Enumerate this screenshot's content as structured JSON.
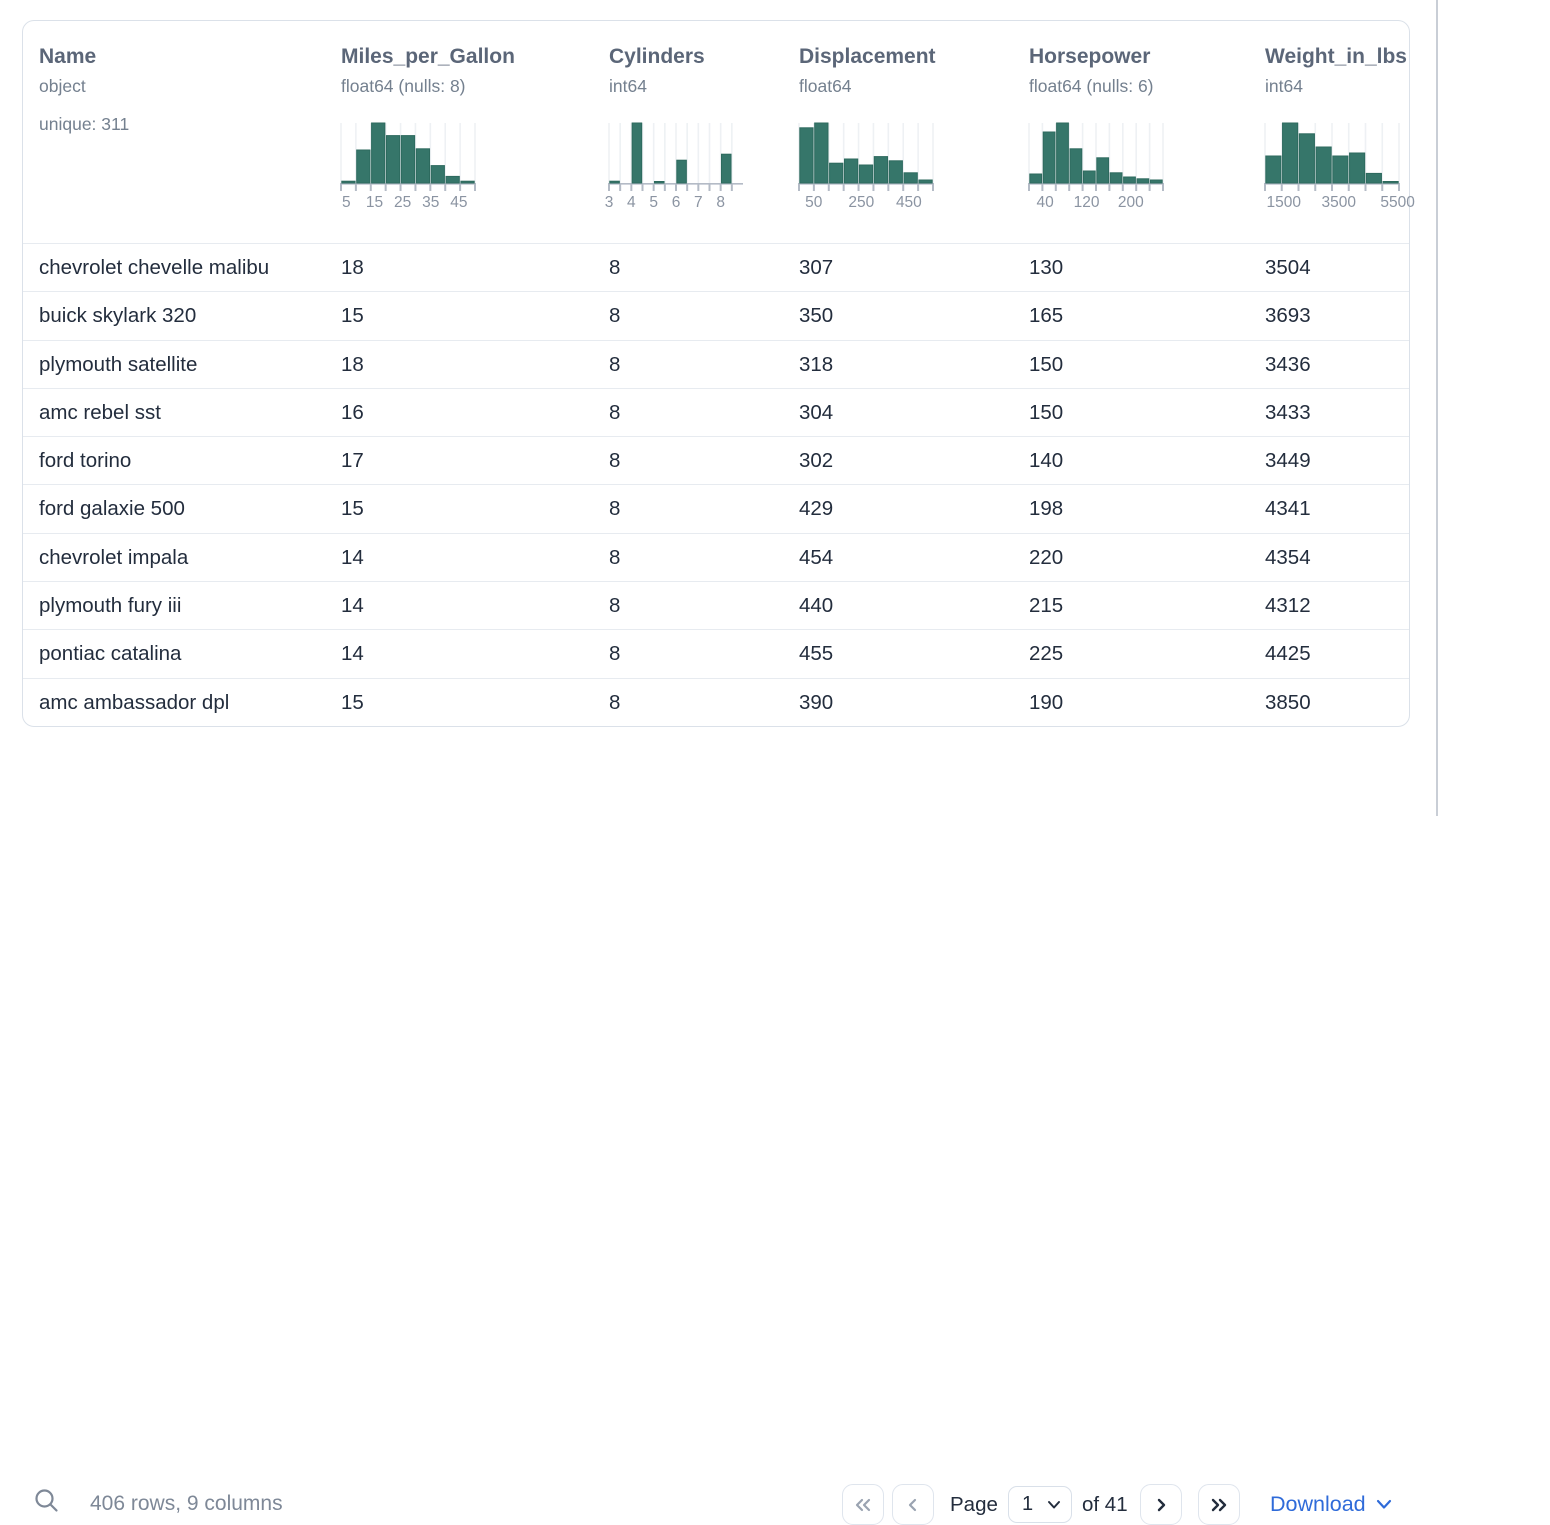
{
  "table": {
    "columns": [
      {
        "name": "Name",
        "dtype": "object",
        "extra": "unique: 311",
        "histogram": null
      },
      {
        "name": "Miles_per_Gallon",
        "dtype": "float64 (nulls: 8)",
        "extra": null,
        "histogram": {
          "bars": [
            {
              "x": 0.0,
              "w": 0.1111,
              "h": 3
            },
            {
              "x": 0.1111,
              "w": 0.1111,
              "h": 55
            },
            {
              "x": 0.2222,
              "w": 0.1111,
              "h": 100
            },
            {
              "x": 0.3333,
              "w": 0.1111,
              "h": 79
            },
            {
              "x": 0.4444,
              "w": 0.1111,
              "h": 79
            },
            {
              "x": 0.5556,
              "w": 0.1111,
              "h": 57
            },
            {
              "x": 0.6667,
              "w": 0.1111,
              "h": 29
            },
            {
              "x": 0.7778,
              "w": 0.1111,
              "h": 11
            },
            {
              "x": 0.8889,
              "w": 0.1111,
              "h": 3
            }
          ],
          "ticks": [
            0,
            0.1111,
            0.2222,
            0.3333,
            0.4444,
            0.5556,
            0.6667,
            0.7778,
            0.8889,
            1
          ],
          "labels": [
            {
              "t": "5",
              "x": 0.04
            },
            {
              "t": "15",
              "x": 0.25
            },
            {
              "t": "25",
              "x": 0.46
            },
            {
              "t": "35",
              "x": 0.67
            },
            {
              "t": "45",
              "x": 0.88
            }
          ]
        }
      },
      {
        "name": "Cylinders",
        "dtype": "int64",
        "extra": null,
        "histogram": {
          "bars": [
            {
              "x": 0.0,
              "w": 0.0833,
              "h": 3
            },
            {
              "x": 0.1667,
              "w": 0.0833,
              "h": 100
            },
            {
              "x": 0.3333,
              "w": 0.0833,
              "h": 2
            },
            {
              "x": 0.5,
              "w": 0.0833,
              "h": 38
            },
            {
              "x": 0.6667,
              "w": 0.0833,
              "h": 0
            },
            {
              "x": 0.8333,
              "w": 0.0833,
              "h": 48
            }
          ],
          "ticks": [
            0,
            0.0833,
            0.1667,
            0.25,
            0.3333,
            0.4167,
            0.5,
            0.5833,
            0.6667,
            0.75,
            0.8333,
            0.9167
          ],
          "labels": [
            {
              "t": "3",
              "x": 0.0
            },
            {
              "t": "4",
              "x": 0.1667
            },
            {
              "t": "5",
              "x": 0.3333
            },
            {
              "t": "6",
              "x": 0.5
            },
            {
              "t": "7",
              "x": 0.6667
            },
            {
              "t": "8",
              "x": 0.8333
            }
          ]
        }
      },
      {
        "name": "Displacement",
        "dtype": "float64",
        "extra": null,
        "histogram": {
          "bars": [
            {
              "x": 0.0,
              "w": 0.1111,
              "h": 92
            },
            {
              "x": 0.1111,
              "w": 0.1111,
              "h": 100
            },
            {
              "x": 0.2222,
              "w": 0.1111,
              "h": 33
            },
            {
              "x": 0.3333,
              "w": 0.1111,
              "h": 40
            },
            {
              "x": 0.4444,
              "w": 0.1111,
              "h": 30
            },
            {
              "x": 0.5556,
              "w": 0.1111,
              "h": 44
            },
            {
              "x": 0.6667,
              "w": 0.1111,
              "h": 37
            },
            {
              "x": 0.7778,
              "w": 0.1111,
              "h": 17
            },
            {
              "x": 0.8889,
              "w": 0.1111,
              "h": 5
            }
          ],
          "ticks": [
            0,
            0.1111,
            0.2222,
            0.3333,
            0.4444,
            0.5556,
            0.6667,
            0.7778,
            0.8889,
            1
          ],
          "labels": [
            {
              "t": "50",
              "x": 0.11
            },
            {
              "t": "250",
              "x": 0.465
            },
            {
              "t": "450",
              "x": 0.82
            }
          ]
        }
      },
      {
        "name": "Horsepower",
        "dtype": "float64 (nulls: 6)",
        "extra": null,
        "histogram": {
          "bars": [
            {
              "x": 0.0,
              "w": 0.1,
              "h": 15
            },
            {
              "x": 0.1,
              "w": 0.1,
              "h": 85
            },
            {
              "x": 0.2,
              "w": 0.1,
              "h": 100
            },
            {
              "x": 0.3,
              "w": 0.1,
              "h": 57
            },
            {
              "x": 0.4,
              "w": 0.1,
              "h": 20
            },
            {
              "x": 0.5,
              "w": 0.1,
              "h": 42
            },
            {
              "x": 0.6,
              "w": 0.1,
              "h": 17
            },
            {
              "x": 0.7,
              "w": 0.1,
              "h": 10
            },
            {
              "x": 0.8,
              "w": 0.1,
              "h": 7
            },
            {
              "x": 0.9,
              "w": 0.1,
              "h": 5
            }
          ],
          "ticks": [
            0,
            0.1,
            0.2,
            0.3,
            0.4,
            0.5,
            0.6,
            0.7,
            0.8,
            0.9,
            1
          ],
          "labels": [
            {
              "t": "40",
              "x": 0.12
            },
            {
              "t": "120",
              "x": 0.43
            },
            {
              "t": "200",
              "x": 0.76
            }
          ]
        }
      },
      {
        "name": "Weight_in_lbs",
        "dtype": "int64",
        "extra": null,
        "histogram": {
          "bars": [
            {
              "x": 0.0,
              "w": 0.125,
              "h": 45
            },
            {
              "x": 0.125,
              "w": 0.125,
              "h": 100
            },
            {
              "x": 0.25,
              "w": 0.125,
              "h": 82
            },
            {
              "x": 0.375,
              "w": 0.125,
              "h": 60
            },
            {
              "x": 0.5,
              "w": 0.125,
              "h": 45
            },
            {
              "x": 0.625,
              "w": 0.125,
              "h": 50
            },
            {
              "x": 0.75,
              "w": 0.125,
              "h": 16
            },
            {
              "x": 0.875,
              "w": 0.125,
              "h": 2
            }
          ],
          "ticks": [
            0,
            0.125,
            0.25,
            0.375,
            0.5,
            0.625,
            0.75,
            0.875,
            1
          ],
          "labels": [
            {
              "t": "1500",
              "x": 0.14
            },
            {
              "t": "3500",
              "x": 0.55
            },
            {
              "t": "5500",
              "x": 0.99
            }
          ]
        }
      }
    ],
    "rows": [
      [
        "chevrolet chevelle malibu",
        "18",
        "8",
        "307",
        "130",
        "3504"
      ],
      [
        "buick skylark 320",
        "15",
        "8",
        "350",
        "165",
        "3693"
      ],
      [
        "plymouth satellite",
        "18",
        "8",
        "318",
        "150",
        "3436"
      ],
      [
        "amc rebel sst",
        "16",
        "8",
        "304",
        "150",
        "3433"
      ],
      [
        "ford torino",
        "17",
        "8",
        "302",
        "140",
        "3449"
      ],
      [
        "ford galaxie 500",
        "15",
        "8",
        "429",
        "198",
        "4341"
      ],
      [
        "chevrolet impala",
        "14",
        "8",
        "454",
        "220",
        "4354"
      ],
      [
        "plymouth fury iii",
        "14",
        "8",
        "440",
        "215",
        "4312"
      ],
      [
        "pontiac catalina",
        "14",
        "8",
        "455",
        "225",
        "4425"
      ],
      [
        "amc ambassador dpl",
        "15",
        "8",
        "390",
        "190",
        "3850"
      ]
    ]
  },
  "footer": {
    "summary": "406 rows, 9 columns",
    "page_label": "Page",
    "page_value": "1",
    "of_label": "of 41",
    "download_label": "Download"
  },
  "colors": {
    "bar_fill": "#36766a",
    "bar_stroke": "#2d6a5e",
    "grid_line": "#eef1f4",
    "axis_line": "#b4bbc6",
    "tick_label": "#8b94a2",
    "accent_blue": "#2f6bd9"
  }
}
